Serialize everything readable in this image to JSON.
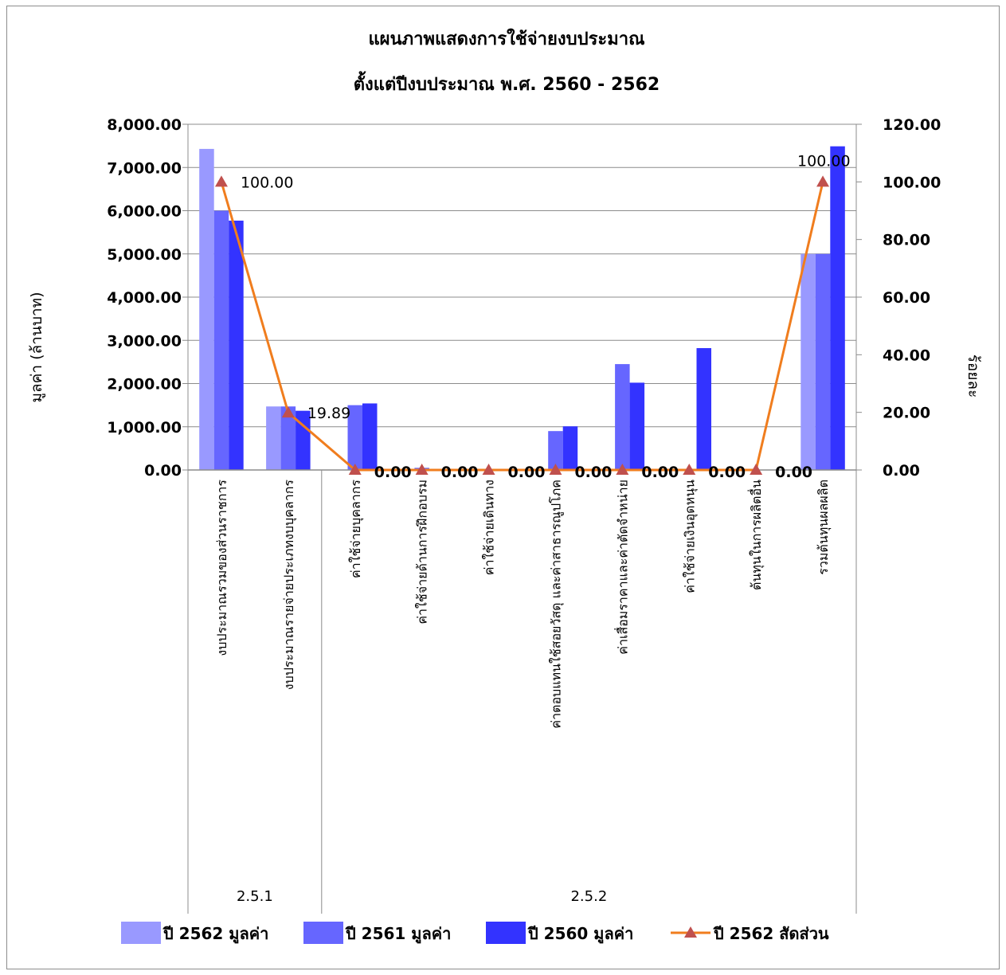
{
  "chart_data": {
    "type": "bar",
    "title": "แผนภาพแสดงการใช้จ่ายงบประมาณ",
    "subtitle": "ตั้งแต่ปีงบประมาณ พ.ศ. 2560 - 2562",
    "ylabel": "มูลค่า (ล้านบาท)",
    "y2label": "ร้อยละ",
    "ylim": [
      0,
      8000
    ],
    "y2lim": [
      0,
      120
    ],
    "y_ticks": [
      "0.00",
      "1,000.00",
      "2,000.00",
      "3,000.00",
      "4,000.00",
      "5,000.00",
      "6,000.00",
      "7,000.00",
      "8,000.00"
    ],
    "y2_ticks": [
      "0.00",
      "20.00",
      "40.00",
      "60.00",
      "80.00",
      "100.00",
      "120.00"
    ],
    "grid": true,
    "legend_position": "bottom",
    "categories": [
      "งบประมาณรวมของส่วนราชการ",
      "งบประมาณรายจ่ายประเภทงบบุคลากร",
      "ค่าใช้จ่ายบุคลากร",
      "ค่าใช้จ่ายด้านการฝึกอบรม",
      "ค่าใช้จ่ายเดินทาง",
      "ค่าตอบแทนใช้สอยวัสดุ และค่าสาธารณูปโภค",
      "ค่าเสื่อมราคาและค่าตัดจำหน่าย",
      "ค่าใช้จ่ายเงินอุดหนุน",
      "ต้นทุนในการผลิตอื่น",
      "รวมต้นทุนผลผลิต"
    ],
    "groups": [
      {
        "label": "2.5.1",
        "count": 2
      },
      {
        "label": "2.5.2",
        "count": 8
      }
    ],
    "series": [
      {
        "name": "ปี 2562 มูลค่า",
        "kind": "bar",
        "color": "#9999ff",
        "values": [
          7430,
          1470,
          0,
          0,
          0,
          0,
          0,
          0,
          0,
          5000
        ]
      },
      {
        "name": "ปี 2561 มูลค่า",
        "kind": "bar",
        "color": "#6666ff",
        "values": [
          6000,
          1470,
          1500,
          50,
          0,
          900,
          2450,
          0,
          0,
          5000
        ]
      },
      {
        "name": "ปี 2560 มูลค่า",
        "kind": "bar",
        "color": "#3333ff",
        "values": [
          5770,
          1370,
          1540,
          0,
          0,
          1010,
          2020,
          2820,
          0,
          7490
        ]
      },
      {
        "name": "ปี 2562 สัดส่วน",
        "kind": "line",
        "axis": "right",
        "color": "#f07d1e",
        "marker_color": "#c0504d",
        "values": [
          100,
          19.89,
          0,
          0,
          0,
          0,
          0,
          0,
          0,
          100
        ]
      }
    ],
    "line_labels": [
      "100.00",
      "19.89",
      "0.00",
      "0.00",
      "0.00",
      "0.00",
      "0.00",
      "0.00",
      "0.00",
      "100.00"
    ]
  }
}
